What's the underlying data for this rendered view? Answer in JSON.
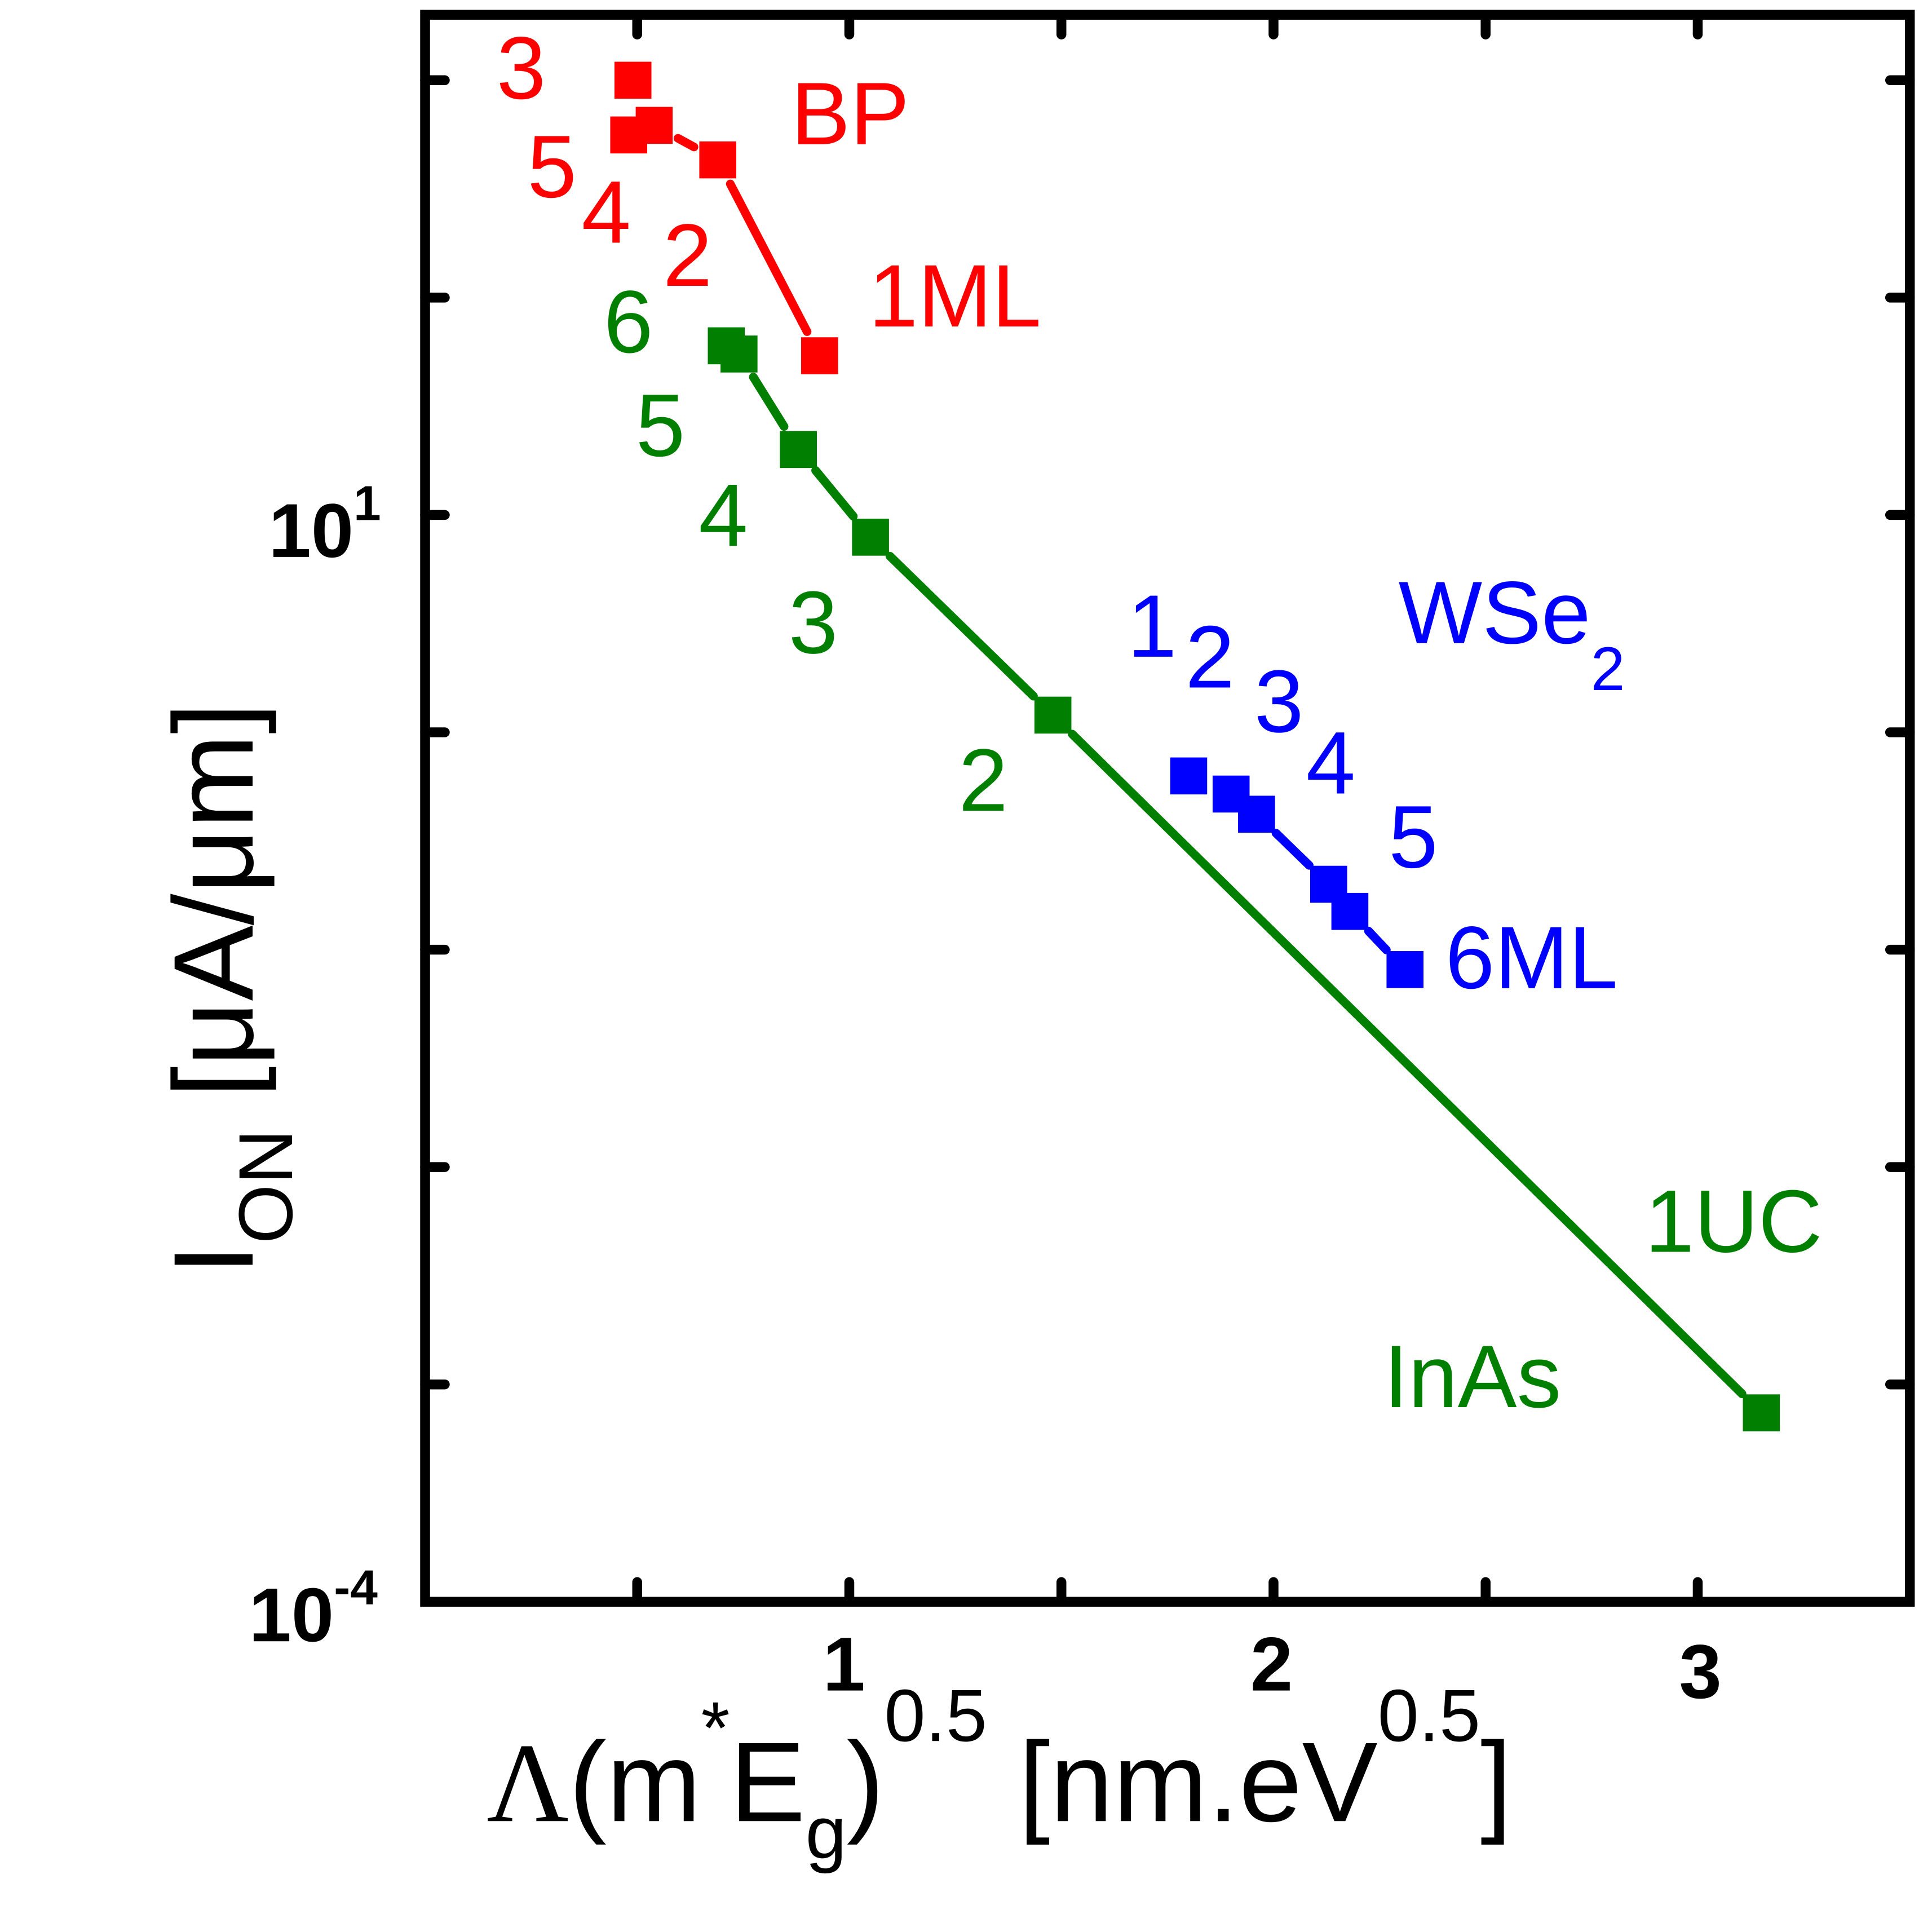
{
  "chart_data": {
    "type": "scatter",
    "title": "",
    "xlabel": {
      "lambda": "Λ",
      "open": "(m",
      "star": "*",
      "E": "E",
      "sub_g": "g",
      "close": ")",
      "exp": "0.5",
      "unit": " [nm.eV",
      "unit_exp": "0.5",
      "unit_close": "]"
    },
    "ylabel": {
      "I": "I",
      "sub": "ON",
      "unit": " [μA/μm]"
    },
    "xlim": [
      0,
      3.5
    ],
    "ylim": [
      0.0001,
      2000
    ],
    "yscale": "log",
    "grid": false,
    "x_ticks": [
      {
        "value": 1,
        "label": "1"
      },
      {
        "value": 2,
        "label": "2"
      },
      {
        "value": 3,
        "label": "3"
      }
    ],
    "y_tick_labels": [
      {
        "base": "10",
        "exp": "1"
      },
      {
        "base": "10",
        "exp": "-4"
      }
    ],
    "series": [
      {
        "name": "BP",
        "color": "#ff0000",
        "x": [
          0.49,
          0.48,
          0.54,
          0.69,
          0.93
        ],
        "y": [
          1000,
          560,
          620,
          430,
          54
        ],
        "point_labels": [
          "3",
          "5",
          "4",
          "2",
          "1ML"
        ]
      },
      {
        "name": "InAs",
        "color": "#007f00",
        "x": [
          0.71,
          0.74,
          0.88,
          1.05,
          1.48,
          3.15
        ],
        "y": [
          60,
          55,
          20,
          7.9,
          1.2,
          0.00074
        ],
        "point_labels": [
          "6",
          "5",
          "4",
          "3",
          "2",
          "1UC"
        ]
      },
      {
        "name": "WSe",
        "name_sub": "2",
        "color": "#0000ff",
        "x": [
          1.8,
          1.9,
          1.96,
          2.13,
          2.18,
          2.31
        ],
        "y": [
          0.63,
          0.52,
          0.42,
          0.2,
          0.15,
          0.081
        ],
        "point_labels": [
          "1",
          "2",
          "3",
          "4",
          "5",
          "6ML"
        ]
      }
    ]
  }
}
